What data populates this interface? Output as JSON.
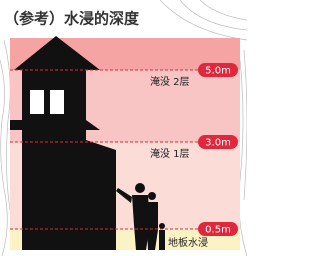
{
  "title": "（参考）水浸的深度",
  "levels": [
    {
      "depth": "5.0m",
      "label": "淹没 2层"
    },
    {
      "depth": "3.0m",
      "label": "淹没 1层"
    },
    {
      "depth": "0.5m",
      "label": "地板水浸"
    }
  ]
}
